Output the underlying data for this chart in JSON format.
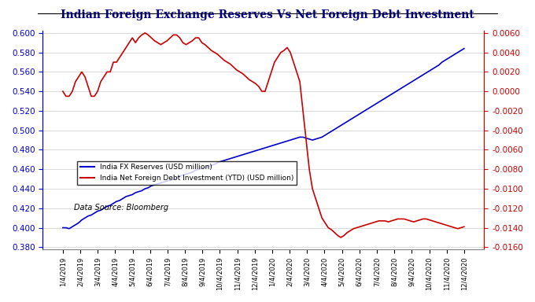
{
  "title": "Indian Foreign Exchange Reserves Vs Net Foreign Debt Investment",
  "data_source": "Data Source: Bloomberg",
  "left_ylim": [
    0.378,
    0.602
  ],
  "right_ylim": [
    -0.0162,
    0.0062
  ],
  "left_yticks": [
    0.38,
    0.4,
    0.42,
    0.44,
    0.46,
    0.48,
    0.5,
    0.52,
    0.54,
    0.56,
    0.58,
    0.6
  ],
  "right_yticks": [
    -0.016,
    -0.014,
    -0.012,
    -0.01,
    -0.008,
    -0.006,
    -0.004,
    -0.002,
    0.0,
    0.002,
    0.004,
    0.006
  ],
  "xtick_labels": [
    "1/4/2019",
    "2/4/2019",
    "3/4/2019",
    "4/4/2019",
    "5/4/2019",
    "6/4/2019",
    "7/4/2019",
    "8/4/2019",
    "9/4/2019",
    "10/4/2019",
    "11/4/2019",
    "12/4/2019",
    "1/4/2020",
    "2/4/2020",
    "3/4/2020",
    "4/4/2020",
    "5/4/2020",
    "6/4/2020",
    "7/4/2020",
    "8/4/2020",
    "9/4/2020",
    "10/4/2020",
    "11/4/2020",
    "12/4/2020"
  ],
  "line1_color": "#0000CC",
  "line2_color": "#CC0000",
  "line1_label": "India FX Reserves (USD million)",
  "line2_label": "India Net Foreign Debt Investment (YTD) (USD million)",
  "background_color": "#ffffff",
  "title_color": "#000080",
  "left_tick_color": "#0000CC",
  "right_tick_color": "#CC0000",
  "line1_data": [
    0.4,
    0.4,
    0.399,
    0.401,
    0.403,
    0.405,
    0.408,
    0.41,
    0.412,
    0.413,
    0.415,
    0.417,
    0.418,
    0.42,
    0.422,
    0.423,
    0.425,
    0.427,
    0.428,
    0.43,
    0.432,
    0.433,
    0.434,
    0.436,
    0.437,
    0.438,
    0.44,
    0.441,
    0.443,
    0.444,
    0.445,
    0.446,
    0.447,
    0.448,
    0.449,
    0.45,
    0.451,
    0.453,
    0.454,
    0.455,
    0.456,
    0.457,
    0.459,
    0.46,
    0.461,
    0.462,
    0.463,
    0.464,
    0.465,
    0.467,
    0.468,
    0.469,
    0.47,
    0.471,
    0.472,
    0.473,
    0.474,
    0.475,
    0.476,
    0.477,
    0.478,
    0.479,
    0.48,
    0.481,
    0.482,
    0.483,
    0.484,
    0.485,
    0.486,
    0.487,
    0.488,
    0.489,
    0.49,
    0.491,
    0.492,
    0.493,
    0.493,
    0.492,
    0.491,
    0.49,
    0.491,
    0.492,
    0.493,
    0.495,
    0.497,
    0.499,
    0.501,
    0.503,
    0.505,
    0.507,
    0.509,
    0.511,
    0.513,
    0.515,
    0.517,
    0.519,
    0.521,
    0.523,
    0.525,
    0.527,
    0.529,
    0.531,
    0.533,
    0.535,
    0.537,
    0.539,
    0.541,
    0.543,
    0.545,
    0.547,
    0.549,
    0.551,
    0.553,
    0.555,
    0.557,
    0.559,
    0.561,
    0.563,
    0.565,
    0.567,
    0.57,
    0.572,
    0.574,
    0.576,
    0.578,
    0.58,
    0.582,
    0.584
  ],
  "line2_data": [
    0.0,
    -0.0005,
    -0.0005,
    0.0,
    0.001,
    0.0015,
    0.002,
    0.0015,
    0.0005,
    -0.0005,
    -0.0005,
    0.0,
    0.001,
    0.0015,
    0.002,
    0.002,
    0.003,
    0.003,
    0.0035,
    0.004,
    0.0045,
    0.005,
    0.0055,
    0.005,
    0.0055,
    0.0058,
    0.006,
    0.0058,
    0.0055,
    0.0052,
    0.005,
    0.0048,
    0.005,
    0.0052,
    0.0055,
    0.0058,
    0.0058,
    0.0055,
    0.005,
    0.0048,
    0.005,
    0.0052,
    0.0055,
    0.0055,
    0.005,
    0.0048,
    0.0045,
    0.0042,
    0.004,
    0.0038,
    0.0035,
    0.0032,
    0.003,
    0.0028,
    0.0025,
    0.0022,
    0.002,
    0.0018,
    0.0015,
    0.0012,
    0.001,
    0.0008,
    0.0005,
    0.0,
    0.0,
    0.001,
    0.002,
    0.003,
    0.0035,
    0.004,
    0.0042,
    0.0045,
    0.004,
    0.003,
    0.002,
    0.001,
    -0.002,
    -0.005,
    -0.008,
    -0.01,
    -0.011,
    -0.012,
    -0.013,
    -0.0135,
    -0.014,
    -0.0142,
    -0.0145,
    -0.0148,
    -0.015,
    -0.0148,
    -0.0145,
    -0.0143,
    -0.0141,
    -0.014,
    -0.0139,
    -0.0138,
    -0.0137,
    -0.0136,
    -0.0135,
    -0.0134,
    -0.0133,
    -0.0133,
    -0.0133,
    -0.0134,
    -0.0133,
    -0.0132,
    -0.0131,
    -0.0131,
    -0.0131,
    -0.0132,
    -0.0133,
    -0.0134,
    -0.0133,
    -0.0132,
    -0.0131,
    -0.0131,
    -0.0132,
    -0.0133,
    -0.0134,
    -0.0135,
    -0.0136,
    -0.0137,
    -0.0138,
    -0.0139,
    -0.014,
    -0.0141,
    -0.014,
    -0.0139
  ]
}
